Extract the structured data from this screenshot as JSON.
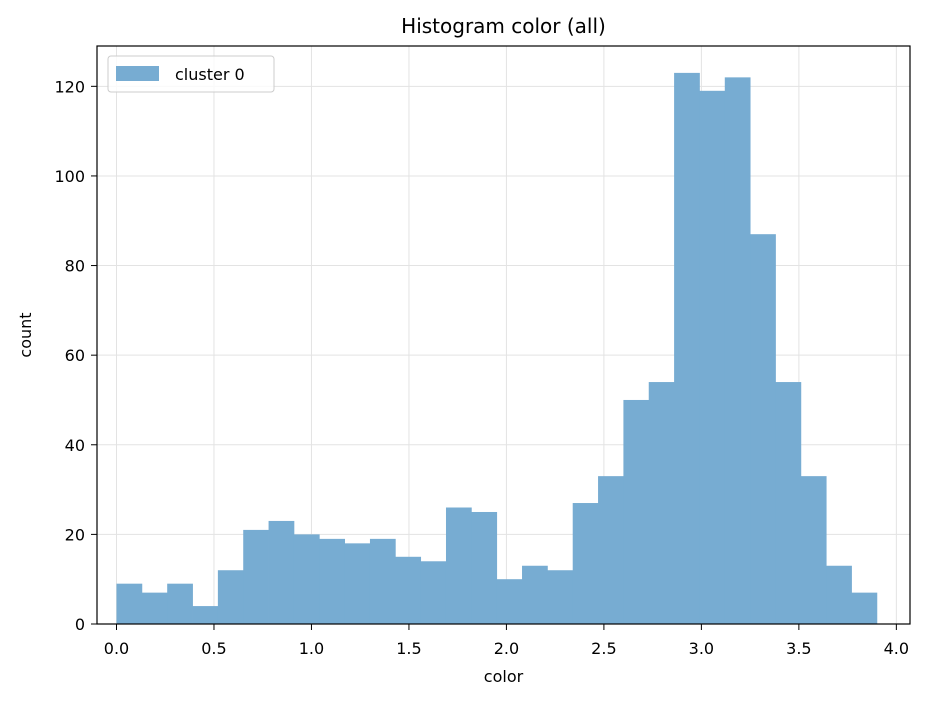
{
  "chart_data": {
    "type": "bar",
    "title": "Histogram color (all)",
    "xlabel": "color",
    "ylabel": "count",
    "xlim": [
      -0.1,
      4.07
    ],
    "ylim": [
      0,
      129
    ],
    "xticks": [
      0.0,
      0.5,
      1.0,
      1.5,
      2.0,
      2.5,
      3.0,
      3.5,
      4.0
    ],
    "xtick_labels": [
      "0.0",
      "0.5",
      "1.0",
      "1.5",
      "2.0",
      "2.5",
      "3.0",
      "3.5",
      "4.0"
    ],
    "yticks": [
      0,
      20,
      40,
      60,
      80,
      100,
      120
    ],
    "ytick_labels": [
      "0",
      "20",
      "40",
      "60",
      "80",
      "100",
      "120"
    ],
    "grid": true,
    "legend": "top-left",
    "bar_color": "#77acd2",
    "series": [
      {
        "name": "cluster 0",
        "bin_start": 0.0,
        "bin_width": 0.13,
        "values": [
          9,
          7,
          9,
          4,
          12,
          21,
          23,
          20,
          19,
          18,
          19,
          15,
          14,
          26,
          25,
          10,
          13,
          12,
          27,
          33,
          50,
          54,
          123,
          119,
          122,
          87,
          54,
          33,
          13,
          7
        ]
      }
    ]
  }
}
